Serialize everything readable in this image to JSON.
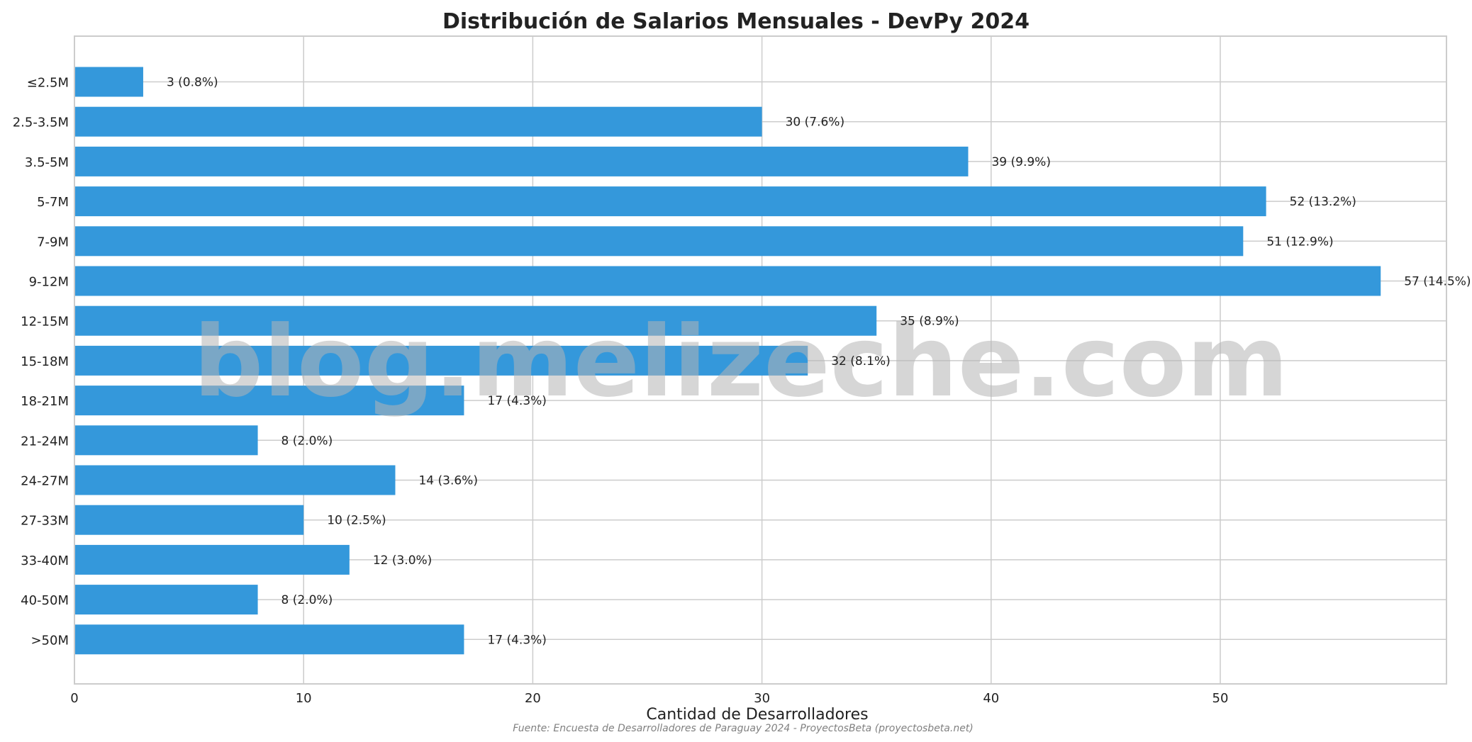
{
  "chart_data": {
    "type": "bar",
    "orientation": "horizontal",
    "title": "Distribución de Salarios Mensuales - DevPy 2024",
    "xlabel": "Cantidad de Desarrolladores",
    "ylabel": "",
    "xlim": [
      0,
      60
    ],
    "xticks": [
      0,
      10,
      20,
      30,
      40,
      50
    ],
    "grid": true,
    "bar_color": "#3498db",
    "categories": [
      "≤2.5M",
      "2.5-3.5M",
      "3.5-5M",
      "5-7M",
      "7-9M",
      "9-12M",
      "12-15M",
      "15-18M",
      "18-21M",
      "21-24M",
      "24-27M",
      "27-33M",
      "33-40M",
      "40-50M",
      ">50M"
    ],
    "values": [
      3,
      30,
      39,
      52,
      51,
      57,
      35,
      32,
      17,
      8,
      14,
      10,
      12,
      8,
      17
    ],
    "labels": [
      "3 (0.8%)",
      "30 (7.6%)",
      "39 (9.9%)",
      "52 (13.2%)",
      "51 (12.9%)",
      "57 (14.5%)",
      "35 (8.9%)",
      "32 (8.1%)",
      "17 (4.3%)",
      "8 (2.0%)",
      "14 (3.6%)",
      "10 (2.5%)",
      "12 (3.0%)",
      "8 (2.0%)",
      "17 (4.3%)"
    ],
    "source": "Fuente: Encuesta de Desarrolladores de Paraguay 2024 - ProyectosBeta (proyectosbeta.net)",
    "watermark": "blog.melizeche.com"
  }
}
